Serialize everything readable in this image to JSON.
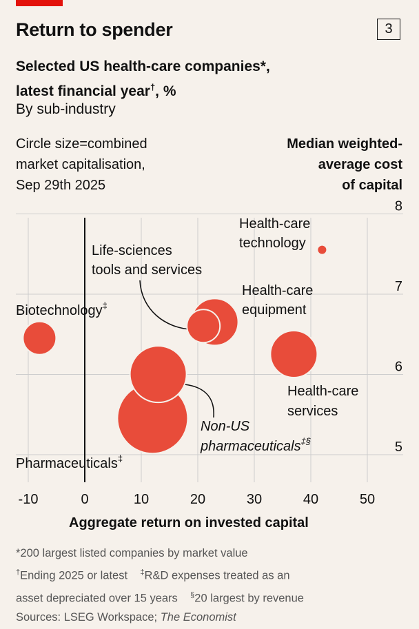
{
  "header": {
    "title": "Return to spender",
    "chart_number": "3",
    "subtitle_line1": "Selected US health-care companies*,",
    "subtitle_line2a": "latest financial year",
    "subtitle_line2_sup": "†",
    "subtitle_line2b": ", %",
    "byline": "By sub-industry",
    "size_note": [
      "Circle size=combined",
      "market capitalisation,",
      "Sep 29th 2025"
    ],
    "y_label": [
      "Median weighted-",
      "average cost",
      "of capital"
    ]
  },
  "colors": {
    "accent": "#e3120b",
    "bubble": "#e84c3a",
    "background": "#f6f1eb",
    "grid": "#cdcdcd"
  },
  "chart_data": {
    "type": "scatter",
    "title": "Return to spender",
    "xlabel": "Aggregate return on invested capital",
    "ylabel": "Median weighted-average cost of capital",
    "xlim": [
      -12,
      55
    ],
    "ylim": [
      4.7,
      8
    ],
    "x_ticks": [
      -10,
      0,
      10,
      20,
      30,
      40,
      50
    ],
    "x_tick_labels": [
      "-10",
      "0",
      "10",
      "20",
      "30",
      "40",
      "50"
    ],
    "y_ticks": [
      5,
      6,
      7,
      8
    ],
    "y_tick_labels": [
      "5",
      "6",
      "7",
      "8"
    ],
    "grid": true,
    "points": [
      {
        "name": "Biotechnology",
        "sup": "‡",
        "x": -8,
        "y": 6.35,
        "size": "medium"
      },
      {
        "name": "Pharmaceuticals",
        "sup": "‡",
        "x": 12,
        "y": 5.35,
        "size": "very large"
      },
      {
        "name": "Non-US pharmaceuticals",
        "sup": "‡§",
        "x": 13,
        "y": 5.9,
        "size": "large"
      },
      {
        "name": "Life-sciences tools and services",
        "x": 21,
        "y": 6.5,
        "size": "small-medium"
      },
      {
        "name": "Health-care equipment",
        "x": 23,
        "y": 6.55,
        "size": "medium-large"
      },
      {
        "name": "Health-care services",
        "x": 37,
        "y": 6.15,
        "size": "medium-large"
      },
      {
        "name": "Health-care technology",
        "x": 42,
        "y": 7.45,
        "size": "tiny"
      }
    ],
    "labels": {
      "biotech": "Biotechnology",
      "pharma": "Pharmaceuticals",
      "nonus_1": "Non-US",
      "nonus_2": "pharmaceuticals",
      "lifesci_1": "Life-sciences",
      "lifesci_2": "tools and services",
      "equip_1": "Health-care",
      "equip_2": "equipment",
      "services_1": "Health-care",
      "services_2": "services",
      "tech_1": "Health-care",
      "tech_2": "technology",
      "dagger": "‡",
      "dagger_sect": "‡§"
    }
  },
  "footnotes": {
    "line1": "*200 largest listed companies by market value",
    "line2a_sup": "†",
    "line2a": "Ending 2025 or latest",
    "line2b_sup": "‡",
    "line2b": "R&D expenses treated as an",
    "line3a": "asset depreciated over 15 years",
    "line3b_sup": "§",
    "line3b": "20 largest by revenue",
    "line4a": "Sources: LSEG Workspace;",
    "line4b": "The Economist"
  }
}
